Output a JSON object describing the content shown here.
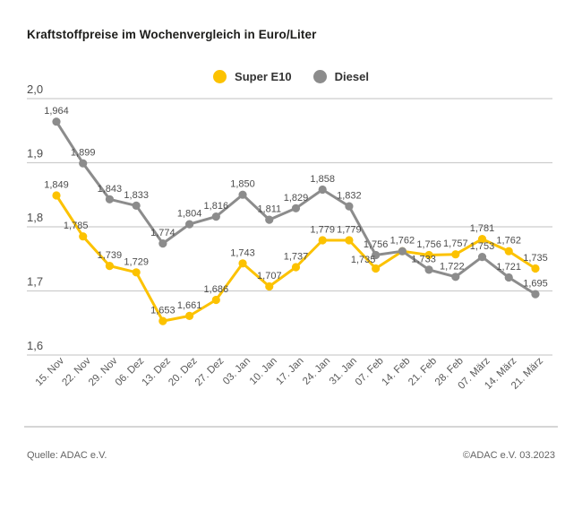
{
  "title": "Kraftstoffpreise im Wochenvergleich in Euro/Liter",
  "footer": {
    "source": "Quelle: ADAC e.V.",
    "copyright": "©ADAC e.V. 03.2023"
  },
  "colors": {
    "super_e10": "#FCC200",
    "diesel": "#8C8C8C",
    "grid": "#CDCDCD",
    "value_label": "#4D4D4D",
    "axis_label": "#5A5A5A"
  },
  "chart_data": {
    "type": "line",
    "title": "Kraftstoffpreise im Wochenvergleich in Euro/Liter",
    "ylabel": "Euro/Liter",
    "ylim": [
      1.6,
      2.0
    ],
    "yticks": [
      "2,0",
      "1,9",
      "1,8",
      "1,7",
      "1,6"
    ],
    "grid": true,
    "legend_position": "top",
    "categories": [
      "15. Nov",
      "22. Nov",
      "29. Nov",
      "06. Dez",
      "13. Dez",
      "20. Dez",
      "27. Dez",
      "03. Jan",
      "10. Jan",
      "17. Jan",
      "24. Jan",
      "31. Jan",
      "07. Feb",
      "14. Feb",
      "21. Feb",
      "28. Feb",
      "07. März",
      "14. März",
      "21. März"
    ],
    "series": [
      {
        "name": "Super E10",
        "color": "#FCC200",
        "values": [
          1.849,
          1.785,
          1.739,
          1.729,
          1.653,
          1.661,
          1.686,
          1.743,
          1.707,
          1.737,
          1.779,
          1.779,
          1.735,
          1.762,
          1.756,
          1.757,
          1.781,
          1.762,
          1.735
        ]
      },
      {
        "name": "Diesel",
        "color": "#8C8C8C",
        "values": [
          1.964,
          1.899,
          1.843,
          1.833,
          1.774,
          1.804,
          1.816,
          1.85,
          1.811,
          1.829,
          1.858,
          1.832,
          1.756,
          1.762,
          1.733,
          1.722,
          1.753,
          1.721,
          1.695
        ]
      }
    ]
  }
}
